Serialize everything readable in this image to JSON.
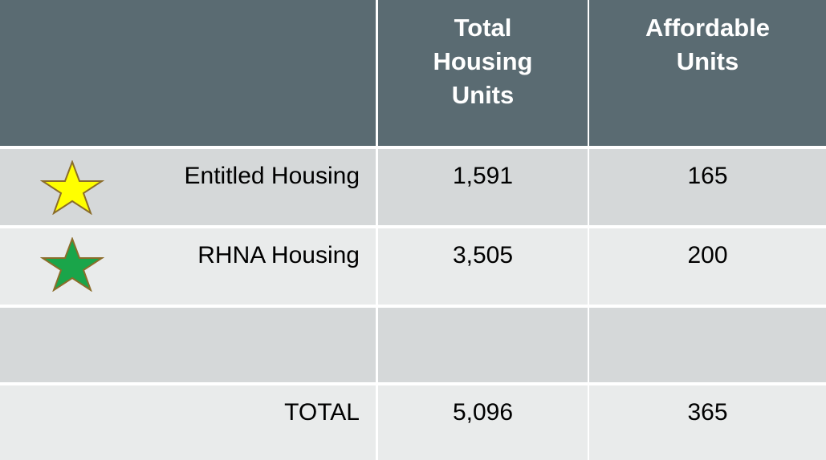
{
  "table": {
    "columns": [
      "Total Housing Units",
      "Affordable Units"
    ],
    "rows": [
      [
        "Entitled Housing",
        "1,591",
        "165"
      ],
      [
        "RHNA Housing",
        "3,505",
        "200"
      ]
    ],
    "total": [
      "TOTAL",
      "5,096",
      "365"
    ]
  }
}
